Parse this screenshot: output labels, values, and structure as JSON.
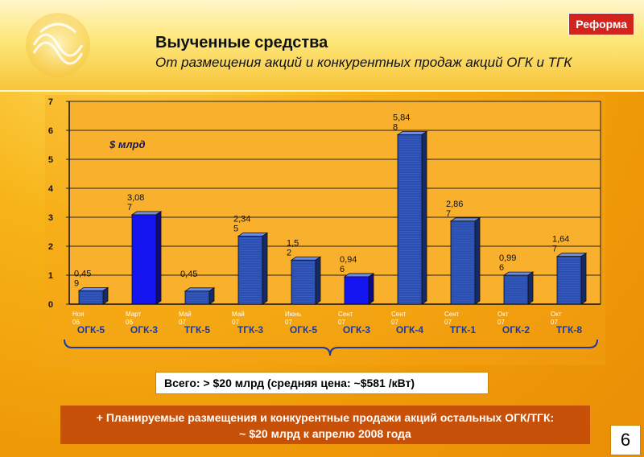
{
  "header": {
    "title": "Выученные средства",
    "subtitle": "От размещения акций и конкурентных продаж акций ОГК и ТГК",
    "badge": "Реформа"
  },
  "chart_data": {
    "type": "bar",
    "unit_label": "$ млрд",
    "ylim": [
      0,
      7
    ],
    "yticks": [
      "0",
      "1",
      "2",
      "3",
      "4",
      "5",
      "6",
      "7"
    ],
    "categories": [
      {
        "date": [
          "Ноя",
          "06"
        ],
        "company": "ОГК-5",
        "value": 0.459,
        "label": [
          "0,45",
          "9"
        ],
        "highlight": false
      },
      {
        "date": [
          "Март",
          "06"
        ],
        "company": "ОГК-3",
        "value": 3.087,
        "label": [
          "3,08",
          "7"
        ],
        "highlight": true
      },
      {
        "date": [
          "Май",
          "07"
        ],
        "company": "ТГК-5",
        "value": 0.45,
        "label": [
          "0,45",
          ""
        ],
        "highlight": false
      },
      {
        "date": [
          "Май",
          "07"
        ],
        "company": "ТГК-3",
        "value": 2.345,
        "label": [
          "2,34",
          "5"
        ],
        "highlight": false
      },
      {
        "date": [
          "Июнь",
          "07"
        ],
        "company": "ОГК-5",
        "value": 1.52,
        "label": [
          "1,5",
          "2"
        ],
        "highlight": false
      },
      {
        "date": [
          "Сент",
          "07"
        ],
        "company": "ОГК-3",
        "value": 0.946,
        "label": [
          "0,94",
          "6"
        ],
        "highlight": true
      },
      {
        "date": [
          "Сент",
          "07"
        ],
        "company": "ОГК-4",
        "value": 5.848,
        "label": [
          "5,84",
          "8"
        ],
        "highlight": false
      },
      {
        "date": [
          "Сент",
          "07"
        ],
        "company": "ТГК-1",
        "value": 2.867,
        "label": [
          "2,86",
          "7"
        ],
        "highlight": false
      },
      {
        "date": [
          "Окт",
          "07"
        ],
        "company": "ОГК-2",
        "value": 0.996,
        "label": [
          "0,99",
          "6"
        ],
        "highlight": false
      },
      {
        "date": [
          "Окт",
          "07"
        ],
        "company": "ТГК-8",
        "value": 1.647,
        "label": [
          "1,64",
          "7"
        ],
        "highlight": false
      }
    ]
  },
  "total_text": "Всего: > $20 млрд (средняя цена: ~$581 /кВт)",
  "plan": {
    "line1": "+ Планируемые размещения и конкурентные продажи акций остальных ОГК/ТГК:",
    "line2": "~ $20 млрд к апрелю 2008 года"
  },
  "page_number": "6",
  "colors": {
    "bar_regular": "#2a4fb0",
    "bar_highlight": "#1414f0",
    "plan_bg": "#c8510a",
    "badge_bg": "#d2231c"
  }
}
